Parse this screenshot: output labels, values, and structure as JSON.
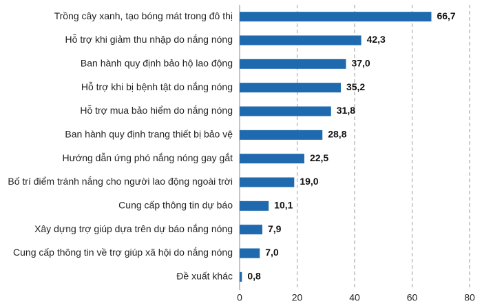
{
  "chart_data": {
    "type": "bar",
    "orientation": "horizontal",
    "categories": [
      "Trồng cây xanh, tạo bóng mát trong đô thị",
      "Hỗ trợ khi giảm thu nhập do nắng nóng",
      "Ban hành quy định bảo hộ lao động",
      "Hỗ trợ khi bị bệnh tật do nắng nóng",
      "Hỗ trợ mua bảo hiểm do nắng nóng",
      "Ban hành quy định trang thiết bị bảo vệ",
      "Hướng dẫn ứng phó nắng nóng gay gắt",
      "Bố trí điểm tránh nắng cho người lao động ngoài trời",
      "Cung cấp thông tin dự báo",
      "Xây dựng trợ giúp dựa trên dự báo nắng nóng",
      "Cung cấp thông tin về trợ giúp xã hội do nắng nóng",
      "Đề xuất khác"
    ],
    "values": [
      66.7,
      42.3,
      37.0,
      35.2,
      31.8,
      28.8,
      22.5,
      19.0,
      10.1,
      7.9,
      7.0,
      0.8
    ],
    "value_labels": [
      "66,7",
      "42,3",
      "37,0",
      "35,2",
      "31,8",
      "28,8",
      "22,5",
      "19,0",
      "10,1",
      "7,9",
      "7,0",
      "0,8"
    ],
    "color": "#1f6aae",
    "xlim": [
      0,
      80
    ],
    "xticks": [
      0,
      20,
      40,
      60,
      80
    ],
    "grid": true
  }
}
